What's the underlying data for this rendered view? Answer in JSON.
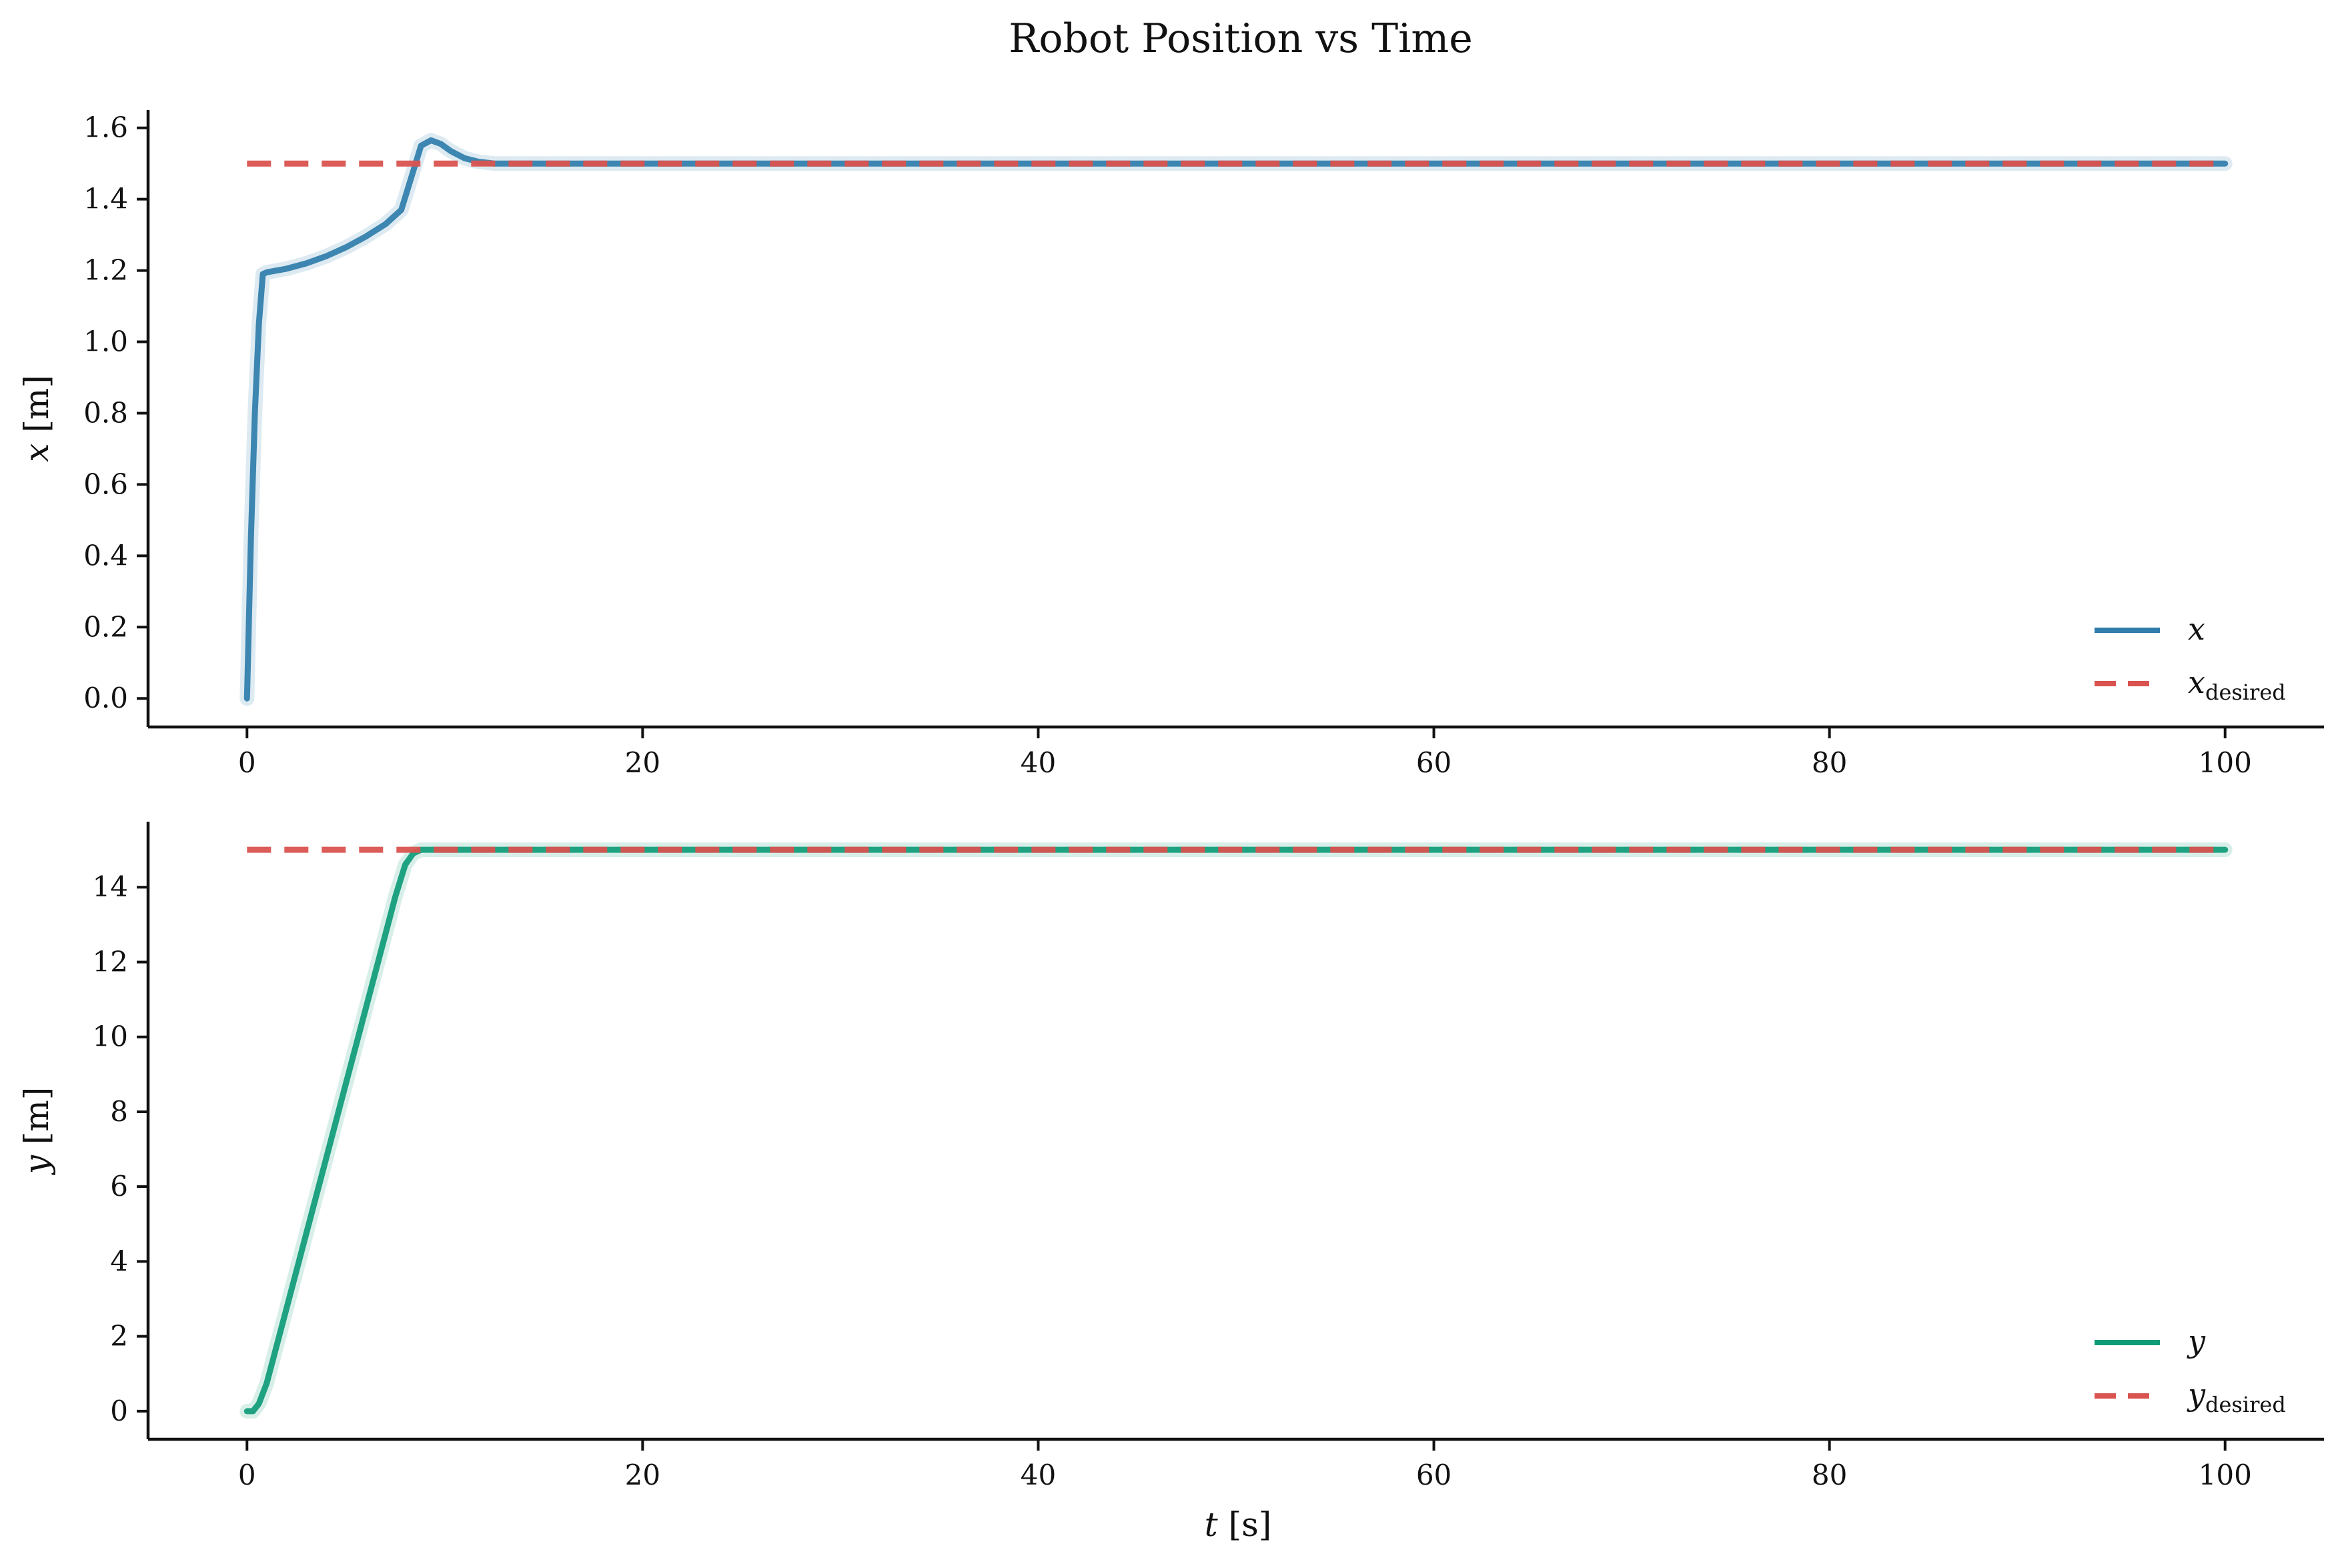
{
  "figure": {
    "title": "Robot Position vs Time"
  },
  "colors": {
    "x_series": "#2e7dab",
    "y_series": "#0f9b77",
    "desired": "#d9534f"
  },
  "chart_data": [
    {
      "type": "line",
      "xlabel_var": "",
      "xlabel_unit": "",
      "ylabel_var": "x",
      "ylabel_unit": " [m]",
      "xlim": [
        -5,
        105
      ],
      "ylim": [
        -0.08,
        1.65
      ],
      "xticks": [
        0,
        20,
        40,
        60,
        80,
        100
      ],
      "yticks": [
        0.0,
        0.2,
        0.4,
        0.6,
        0.8,
        1.0,
        1.2,
        1.4,
        1.6
      ],
      "ytick_labels": [
        "0.0",
        "0.2",
        "0.4",
        "0.6",
        "0.8",
        "1.0",
        "1.2",
        "1.4",
        "1.6"
      ],
      "legend_position": "lower-right",
      "grid": false,
      "series": [
        {
          "name": "x",
          "name_sub": "",
          "style": "solid",
          "x": [
            0,
            0.2,
            0.4,
            0.6,
            0.8,
            1.0,
            1.5,
            2,
            3,
            4,
            5,
            6,
            7,
            7.8,
            8.3,
            8.8,
            9.3,
            9.8,
            10.3,
            11,
            11.7,
            12.5,
            13.5,
            15,
            20,
            40,
            60,
            80,
            100
          ],
          "values": [
            0.0,
            0.45,
            0.8,
            1.05,
            1.19,
            1.195,
            1.2,
            1.205,
            1.22,
            1.24,
            1.265,
            1.295,
            1.33,
            1.37,
            1.46,
            1.55,
            1.565,
            1.555,
            1.535,
            1.515,
            1.505,
            1.5,
            1.5,
            1.5,
            1.5,
            1.5,
            1.5,
            1.5,
            1.5
          ]
        },
        {
          "name": "x",
          "name_sub": "desired",
          "style": "dashed",
          "x": [
            0,
            100
          ],
          "values": [
            1.5,
            1.5
          ]
        }
      ]
    },
    {
      "type": "line",
      "xlabel_var": "t",
      "xlabel_unit": " [s]",
      "ylabel_var": "y",
      "ylabel_unit": " [m]",
      "xlim": [
        -5,
        105
      ],
      "ylim": [
        -0.75,
        15.75
      ],
      "xticks": [
        0,
        20,
        40,
        60,
        80,
        100
      ],
      "yticks": [
        0,
        2,
        4,
        6,
        8,
        10,
        12,
        14
      ],
      "ytick_labels": [
        "0",
        "2",
        "4",
        "6",
        "8",
        "10",
        "12",
        "14"
      ],
      "legend_position": "lower-right",
      "grid": false,
      "series": [
        {
          "name": "y",
          "name_sub": "",
          "style": "solid",
          "x": [
            0,
            0.3,
            0.6,
            1.0,
            2,
            3,
            4,
            5,
            6,
            7,
            7.5,
            8.0,
            8.4,
            8.8,
            9.5,
            12,
            20,
            40,
            60,
            80,
            100
          ],
          "values": [
            0.0,
            0.0,
            0.2,
            0.75,
            2.75,
            4.75,
            6.75,
            8.75,
            10.75,
            12.75,
            13.75,
            14.6,
            14.9,
            15.0,
            15.0,
            15.0,
            15.0,
            15.0,
            15.0,
            15.0,
            15.0
          ]
        },
        {
          "name": "y",
          "name_sub": "desired",
          "style": "dashed",
          "x": [
            0,
            100
          ],
          "values": [
            15.0,
            15.0
          ]
        }
      ]
    }
  ]
}
